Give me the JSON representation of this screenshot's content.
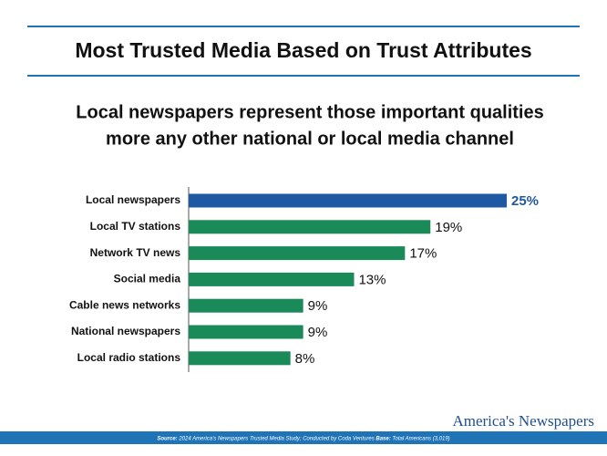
{
  "header": {
    "title": "Most Trusted Media Based on Trust Attributes"
  },
  "chart_data": {
    "type": "bar",
    "orientation": "horizontal",
    "subtitle": [
      "Local newspapers represent those important qualities",
      "more any other national or local media channel"
    ],
    "categories": [
      "Local newspapers",
      "Local TV stations",
      "Network TV news",
      "Social media",
      "Cable news networks",
      "National newspapers",
      "Local radio stations"
    ],
    "values": [
      25,
      19,
      17,
      13,
      9,
      9,
      8
    ],
    "value_labels": [
      "25%",
      "19%",
      "17%",
      "13%",
      "9%",
      "9%",
      "8%"
    ],
    "colors": [
      "#1f58a3",
      "#1a8a58",
      "#1a8a58",
      "#1a8a58",
      "#1a8a58",
      "#1a8a58",
      "#1a8a58"
    ]
  },
  "footer": {
    "source_label": "Source:",
    "source": "2024 America's Newspapers Trusted Media Study; Conducted by Coda Ventures",
    "base_label": "Base:",
    "base": "Total Americans (3,019)",
    "logo": "America's Newspapers"
  }
}
